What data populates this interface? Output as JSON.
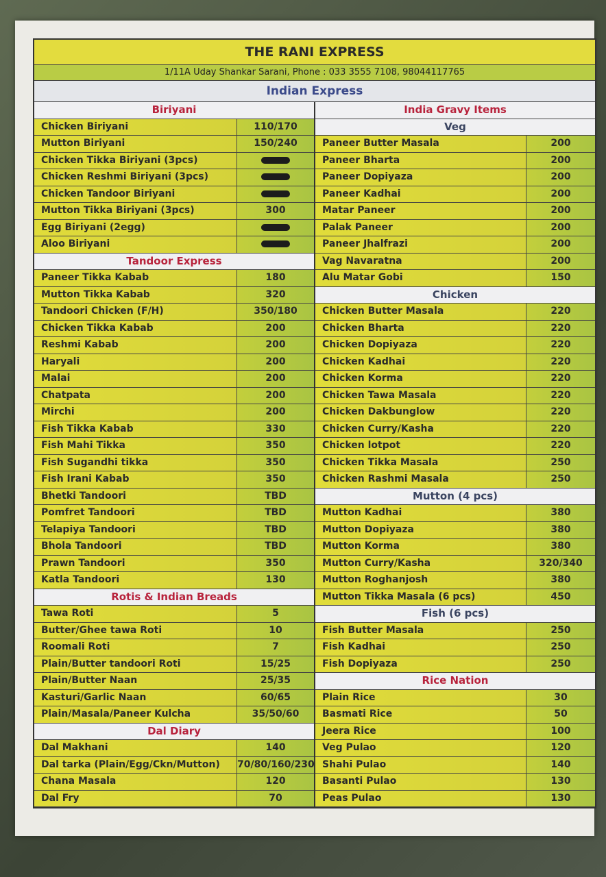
{
  "title": "THE RANI EXPRESS",
  "address": "1/11A Uday Shankar Sarani, Phone : 033 3555 7108, 98044117765",
  "subtitle": "Indian Express",
  "left": [
    {
      "header": "Biriyani",
      "items": [
        [
          "Chicken Biriyani",
          "110/170"
        ],
        [
          "Mutton Biriyani",
          "150/240"
        ],
        [
          "Chicken Tikka Biriyani (3pcs)",
          ""
        ],
        [
          "Chicken Reshmi Biriyani (3pcs)",
          ""
        ],
        [
          "Chicken Tandoor Biriyani",
          ""
        ],
        [
          "Mutton Tikka Biriyani (3pcs)",
          "300"
        ],
        [
          "Egg Biriyani (2egg)",
          ""
        ],
        [
          "Aloo Biriyani",
          ""
        ]
      ]
    },
    {
      "header": "Tandoor Express",
      "items": [
        [
          "Paneer Tikka Kabab",
          "180"
        ],
        [
          "Mutton Tikka Kabab",
          "320"
        ],
        [
          "Tandoori Chicken (F/H)",
          "350/180"
        ],
        [
          "Chicken Tikka Kabab",
          "200"
        ],
        [
          "Reshmi Kabab",
          "200"
        ],
        [
          "Haryali",
          "200"
        ],
        [
          "Malai",
          "200"
        ],
        [
          "Chatpata",
          "200"
        ],
        [
          "Mirchi",
          "200"
        ],
        [
          "Fish Tikka Kabab",
          "330"
        ],
        [
          "Fish Mahi Tikka",
          "350"
        ],
        [
          "Fish Sugandhi tikka",
          "350"
        ],
        [
          "Fish Irani Kabab",
          "350"
        ],
        [
          "Bhetki Tandoori",
          "TBD"
        ],
        [
          "Pomfret Tandoori",
          "TBD"
        ],
        [
          "Telapiya Tandoori",
          "TBD"
        ],
        [
          "Bhola Tandoori",
          "TBD"
        ],
        [
          "Prawn Tandoori",
          "350"
        ],
        [
          "Katla Tandoori",
          "130"
        ]
      ]
    },
    {
      "header": "Rotis & Indian Breads",
      "items": [
        [
          "Tawa Roti",
          "5"
        ],
        [
          "Butter/Ghee tawa Roti",
          "10"
        ],
        [
          "Roomali Roti",
          "7"
        ],
        [
          "Plain/Butter tandoori Roti",
          "15/25"
        ],
        [
          "Plain/Butter Naan",
          "25/35"
        ],
        [
          "Kasturi/Garlic Naan",
          "60/65"
        ],
        [
          "Plain/Masala/Paneer Kulcha",
          "35/50/60"
        ]
      ]
    },
    {
      "header": "Dal Diary",
      "items": [
        [
          "Dal Makhani",
          "140"
        ],
        [
          "Dal tarka (Plain/Egg/Ckn/Mutton)",
          "70/80/160/230"
        ],
        [
          "Chana Masala",
          "120"
        ],
        [
          "Dal Fry",
          "70"
        ]
      ]
    }
  ],
  "right_header": "India Gravy Items",
  "right": [
    {
      "header": "Veg",
      "items": [
        [
          "Paneer Butter Masala",
          "200"
        ],
        [
          "Paneer Bharta",
          "200"
        ],
        [
          "Paneer Dopiyaza",
          "200"
        ],
        [
          "Paneer Kadhai",
          "200"
        ],
        [
          "Matar Paneer",
          "200"
        ],
        [
          "Palak Paneer",
          "200"
        ],
        [
          "Paneer Jhalfrazi",
          "200"
        ],
        [
          "Vag Navaratna",
          "200"
        ],
        [
          "Alu Matar Gobi",
          "150"
        ]
      ]
    },
    {
      "header": "Chicken",
      "items": [
        [
          "Chicken Butter Masala",
          "220"
        ],
        [
          "Chicken Bharta",
          "220"
        ],
        [
          "Chicken Dopiyaza",
          "220"
        ],
        [
          "Chicken Kadhai",
          "220"
        ],
        [
          "Chicken Korma",
          "220"
        ],
        [
          "Chicken Tawa Masala",
          "220"
        ],
        [
          "Chicken Dakbunglow",
          "220"
        ],
        [
          "Chicken Curry/Kasha",
          "220"
        ],
        [
          "Chicken lotpot",
          "220"
        ],
        [
          "Chicken Tikka Masala",
          "250"
        ],
        [
          "Chicken Rashmi Masala",
          "250"
        ]
      ]
    },
    {
      "header": "Mutton (4 pcs)",
      "items": [
        [
          "Mutton Kadhai",
          "380"
        ],
        [
          "Mutton Dopiyaza",
          "380"
        ],
        [
          "Mutton Korma",
          "380"
        ],
        [
          "Mutton Curry/Kasha",
          "320/340"
        ],
        [
          "Mutton Roghanjosh",
          "380"
        ],
        [
          "Mutton Tikka Masala (6 pcs)",
          "450"
        ]
      ]
    },
    {
      "header": "Fish (6 pcs)",
      "items": [
        [
          "Fish Butter Masala",
          "250"
        ],
        [
          "Fish Kadhai",
          "250"
        ],
        [
          "Fish Dopiyaza",
          "250"
        ]
      ]
    },
    {
      "header": "Rice Nation",
      "items": [
        [
          "Plain Rice",
          "30"
        ],
        [
          "Basmati Rice",
          "50"
        ],
        [
          "Jeera Rice",
          "100"
        ],
        [
          "Veg Pulao",
          "120"
        ],
        [
          "Shahi Pulao",
          "140"
        ],
        [
          "Basanti Pulao",
          "130"
        ],
        [
          "Peas Pulao",
          "130"
        ]
      ]
    }
  ]
}
